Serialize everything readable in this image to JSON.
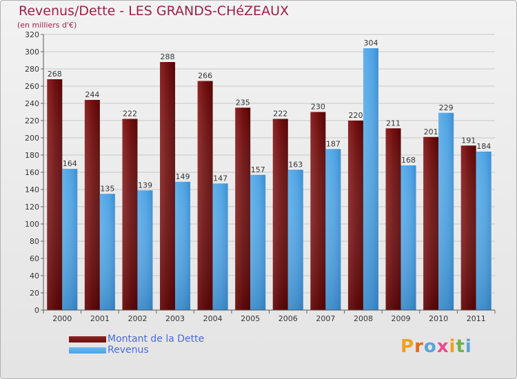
{
  "title": "Revenus/Dette - LES GRANDS-CHéZEAUX",
  "subtitle": "(en milliers d'€)",
  "logo_text": "Proxiti",
  "colors": {
    "dette": "#6e0d0d",
    "revenus": "#4fa3e3",
    "title": "#9c1f47",
    "legend_text": "#4a6bd8"
  },
  "legend": [
    {
      "label": "Montant de la Dette",
      "color": "#6e0d0d"
    },
    {
      "label": "Revenus",
      "color": "#4fa3e3"
    }
  ],
  "chart_data": {
    "type": "bar",
    "title": "Revenus/Dette - LES GRANDS-CHéZEAUX",
    "subtitle": "(en milliers d'€)",
    "xlabel": "",
    "ylabel": "",
    "ylim": [
      0,
      320
    ],
    "yticks": [
      0,
      20,
      40,
      60,
      80,
      100,
      120,
      140,
      160,
      180,
      200,
      220,
      240,
      260,
      280,
      300,
      320
    ],
    "grid": true,
    "legend_position": "bottom-left",
    "categories": [
      "2000",
      "2001",
      "2002",
      "2003",
      "2004",
      "2005",
      "2006",
      "2007",
      "2008",
      "2009",
      "2010",
      "2011"
    ],
    "series": [
      {
        "name": "Montant de la Dette",
        "values": [
          268,
          244,
          222,
          288,
          266,
          235,
          222,
          230,
          220,
          211,
          201,
          191
        ]
      },
      {
        "name": "Revenus",
        "values": [
          164,
          135,
          139,
          149,
          147,
          157,
          163,
          187,
          304,
          168,
          229,
          184
        ]
      }
    ]
  }
}
